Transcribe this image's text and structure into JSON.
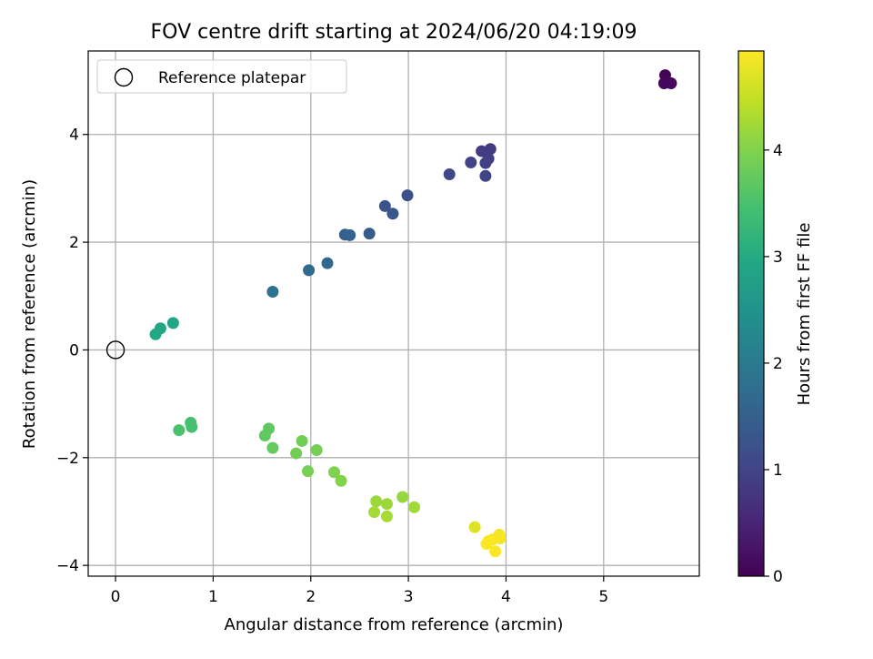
{
  "chart_data": {
    "type": "scatter",
    "title": "FOV centre drift starting at 2024/06/20 04:19:09",
    "xlabel": "Angular distance from reference (arcmin)",
    "ylabel": "Rotation from reference (arcmin)",
    "xlim": [
      -0.28,
      5.98
    ],
    "ylim": [
      -4.2,
      5.55
    ],
    "xticks": [
      0,
      1,
      2,
      3,
      4,
      5
    ],
    "yticks": [
      -4,
      -2,
      0,
      2,
      4
    ],
    "grid": true,
    "legend": {
      "placement": "upper-left",
      "entries": [
        "Reference platepar"
      ]
    },
    "reference_point": {
      "x": 0,
      "y": 0,
      "marker": "open-circle",
      "color": "#000000"
    },
    "colorbar": {
      "label": "Hours from first FF file",
      "colormap": "viridis",
      "range": [
        0,
        4.93
      ],
      "ticks": [
        0,
        1,
        2,
        3,
        4
      ]
    },
    "points": [
      {
        "x": 5.63,
        "y": 5.1,
        "c": 0.05
      },
      {
        "x": 5.62,
        "y": 4.95,
        "c": 0.08
      },
      {
        "x": 5.69,
        "y": 4.95,
        "c": 0.1
      },
      {
        "x": 3.84,
        "y": 3.73,
        "c": 0.85
      },
      {
        "x": 3.75,
        "y": 3.69,
        "c": 0.87
      },
      {
        "x": 3.82,
        "y": 3.55,
        "c": 0.9
      },
      {
        "x": 3.79,
        "y": 3.47,
        "c": 0.92
      },
      {
        "x": 3.64,
        "y": 3.48,
        "c": 0.95
      },
      {
        "x": 3.79,
        "y": 3.23,
        "c": 0.98
      },
      {
        "x": 3.42,
        "y": 3.26,
        "c": 1.05
      },
      {
        "x": 2.99,
        "y": 2.87,
        "c": 1.22
      },
      {
        "x": 2.76,
        "y": 2.67,
        "c": 1.28
      },
      {
        "x": 2.84,
        "y": 2.53,
        "c": 1.32
      },
      {
        "x": 2.6,
        "y": 2.16,
        "c": 1.42
      },
      {
        "x": 2.35,
        "y": 2.14,
        "c": 1.5
      },
      {
        "x": 2.4,
        "y": 2.13,
        "c": 1.52
      },
      {
        "x": 2.17,
        "y": 1.61,
        "c": 1.65
      },
      {
        "x": 1.98,
        "y": 1.48,
        "c": 1.7
      },
      {
        "x": 1.61,
        "y": 1.08,
        "c": 1.85
      },
      {
        "x": 0.59,
        "y": 0.5,
        "c": 2.9
      },
      {
        "x": 0.46,
        "y": 0.4,
        "c": 2.93
      },
      {
        "x": 0.41,
        "y": 0.29,
        "c": 2.95
      },
      {
        "x": 0.77,
        "y": -1.35,
        "c": 3.45
      },
      {
        "x": 0.78,
        "y": -1.43,
        "c": 3.47
      },
      {
        "x": 0.65,
        "y": -1.49,
        "c": 3.5
      },
      {
        "x": 1.57,
        "y": -1.46,
        "c": 3.7
      },
      {
        "x": 1.53,
        "y": -1.59,
        "c": 3.72
      },
      {
        "x": 1.61,
        "y": -1.82,
        "c": 3.75
      },
      {
        "x": 1.91,
        "y": -1.69,
        "c": 3.85
      },
      {
        "x": 1.85,
        "y": -1.92,
        "c": 3.87
      },
      {
        "x": 2.06,
        "y": -1.86,
        "c": 3.9
      },
      {
        "x": 1.97,
        "y": -2.25,
        "c": 3.92
      },
      {
        "x": 2.24,
        "y": -2.27,
        "c": 3.97
      },
      {
        "x": 2.31,
        "y": -2.43,
        "c": 4.0
      },
      {
        "x": 2.94,
        "y": -2.73,
        "c": 4.15
      },
      {
        "x": 2.67,
        "y": -2.81,
        "c": 4.18
      },
      {
        "x": 2.78,
        "y": -2.86,
        "c": 4.2
      },
      {
        "x": 3.06,
        "y": -2.92,
        "c": 4.22
      },
      {
        "x": 2.65,
        "y": -3.01,
        "c": 4.25
      },
      {
        "x": 2.78,
        "y": -3.09,
        "c": 4.27
      },
      {
        "x": 3.68,
        "y": -3.29,
        "c": 4.7
      },
      {
        "x": 3.93,
        "y": -3.43,
        "c": 4.85
      },
      {
        "x": 3.86,
        "y": -3.52,
        "c": 4.88
      },
      {
        "x": 3.94,
        "y": -3.5,
        "c": 4.89
      },
      {
        "x": 3.82,
        "y": -3.55,
        "c": 4.9
      },
      {
        "x": 3.8,
        "y": -3.6,
        "c": 4.92
      },
      {
        "x": 3.89,
        "y": -3.74,
        "c": 4.93
      }
    ]
  }
}
